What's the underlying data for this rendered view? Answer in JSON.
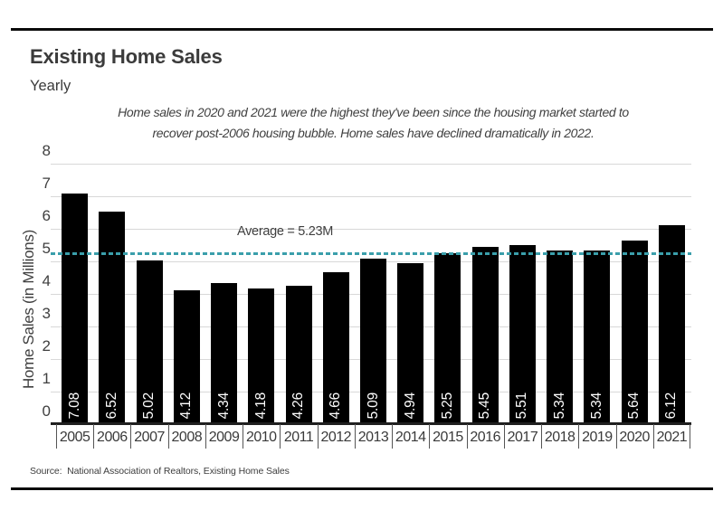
{
  "header": {
    "title": "Existing Home Sales",
    "subtitle": "Yearly"
  },
  "annotation": {
    "line1": "Home sales in 2020 and 2021 were the highest they've been since the housing market started to",
    "line2": "recover post-2006 housing bubble. Home sales have declined dramatically in 2022."
  },
  "chart_data": {
    "type": "bar",
    "title": "Existing Home Sales",
    "subtitle": "Yearly",
    "categories": [
      "2005",
      "2006",
      "2007",
      "2008",
      "2009",
      "2010",
      "2011",
      "2012",
      "2013",
      "2014",
      "2015",
      "2016",
      "2017",
      "2018",
      "2019",
      "2020",
      "2021"
    ],
    "values": [
      7.08,
      6.52,
      5.02,
      4.12,
      4.34,
      4.18,
      4.26,
      4.66,
      5.09,
      4.94,
      5.25,
      5.45,
      5.51,
      5.34,
      5.34,
      5.64,
      6.12
    ],
    "bar_labels": [
      "7.08",
      "6.52",
      "5.02",
      "4.12",
      "4.34",
      "4.18",
      "4.26",
      "4.66",
      "5.09",
      "4.94",
      "5.25",
      "5.45",
      "5.51",
      "5.34",
      "5.34",
      "5.64",
      "6.12"
    ],
    "xlabel": "",
    "ylabel": "Home Sales (in Millions)",
    "ylim": [
      0,
      8
    ],
    "yticks": [
      0,
      1,
      2,
      3,
      4,
      5,
      6,
      7,
      8
    ],
    "grid": true,
    "legend": false,
    "bar_color": "#000000",
    "average_line": {
      "value": 5.23,
      "label": "Average = 5.23M",
      "color": "#3A9FAB",
      "style": "dashed"
    }
  },
  "source": {
    "text": "Source:  National Association of Realtors, Existing Home Sales"
  }
}
